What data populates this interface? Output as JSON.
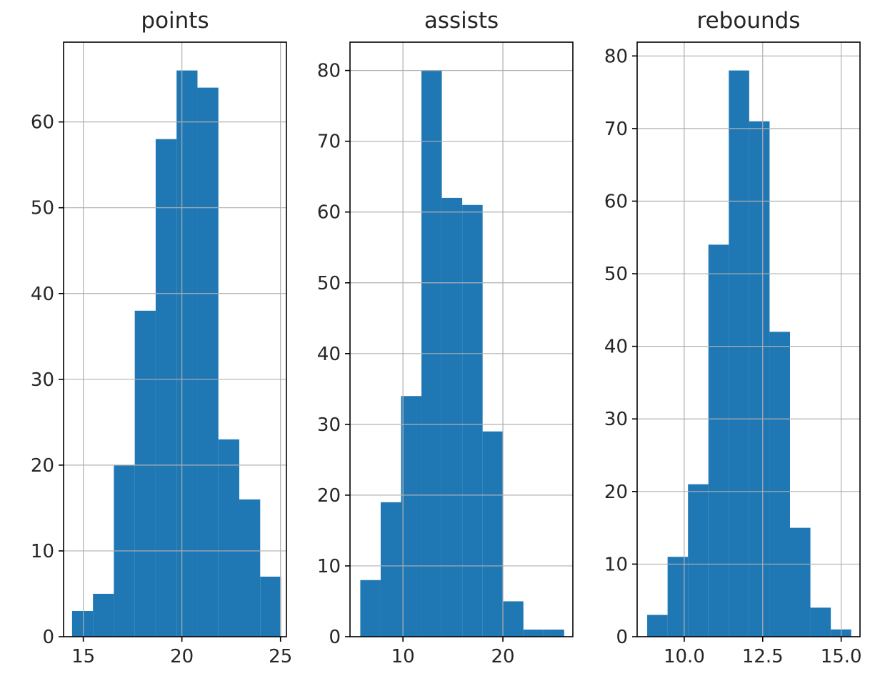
{
  "colors": {
    "bar": "#1f77b4",
    "grid": "#b0b0b0",
    "axis": "#000000",
    "text": "#262626"
  },
  "chart_data": [
    {
      "type": "bar",
      "title": "points",
      "grid": true,
      "xlim": [
        14.0,
        25.3
      ],
      "ylim": [
        0,
        69.3
      ],
      "x_ticks": [
        15,
        20,
        25
      ],
      "x_tick_labels": [
        "15",
        "20",
        "25"
      ],
      "y_ticks": [
        0,
        10,
        20,
        30,
        40,
        50,
        60
      ],
      "y_tick_labels": [
        "0",
        "10",
        "20",
        "30",
        "40",
        "50",
        "60"
      ],
      "bin_edges": [
        14.43,
        15.49,
        16.55,
        17.61,
        18.67,
        19.73,
        20.79,
        21.85,
        22.91,
        23.97,
        25.03
      ],
      "values": [
        3,
        5,
        20,
        38,
        58,
        66,
        64,
        23,
        16,
        7
      ]
    },
    {
      "type": "bar",
      "title": "assists",
      "grid": true,
      "xlim": [
        4.7,
        27.0
      ],
      "ylim": [
        0,
        84
      ],
      "x_ticks": [
        10,
        20
      ],
      "x_tick_labels": [
        "10",
        "20"
      ],
      "y_ticks": [
        0,
        10,
        20,
        30,
        40,
        50,
        60,
        70,
        80
      ],
      "y_tick_labels": [
        "0",
        "10",
        "20",
        "30",
        "40",
        "50",
        "60",
        "70",
        "80"
      ],
      "bin_edges": [
        5.73,
        7.77,
        9.81,
        11.85,
        13.89,
        15.93,
        17.97,
        20.01,
        22.05,
        24.09,
        26.13
      ],
      "values": [
        8,
        19,
        34,
        80,
        62,
        61,
        29,
        5,
        1,
        1
      ]
    },
    {
      "type": "bar",
      "title": "rebounds",
      "grid": true,
      "xlim": [
        8.5,
        15.6
      ],
      "ylim": [
        0,
        81.9
      ],
      "x_ticks": [
        10.0,
        12.5,
        15.0
      ],
      "x_tick_labels": [
        "10.0",
        "12.5",
        "15.0"
      ],
      "y_ticks": [
        0,
        10,
        20,
        30,
        40,
        50,
        60,
        70,
        80
      ],
      "y_tick_labels": [
        "0",
        "10",
        "20",
        "30",
        "40",
        "50",
        "60",
        "70",
        "80"
      ],
      "bin_edges": [
        8.82,
        9.47,
        10.12,
        10.77,
        11.42,
        12.07,
        12.72,
        13.37,
        14.02,
        14.67,
        15.32
      ],
      "values": [
        3,
        11,
        21,
        54,
        78,
        71,
        42,
        15,
        4,
        1
      ]
    }
  ]
}
